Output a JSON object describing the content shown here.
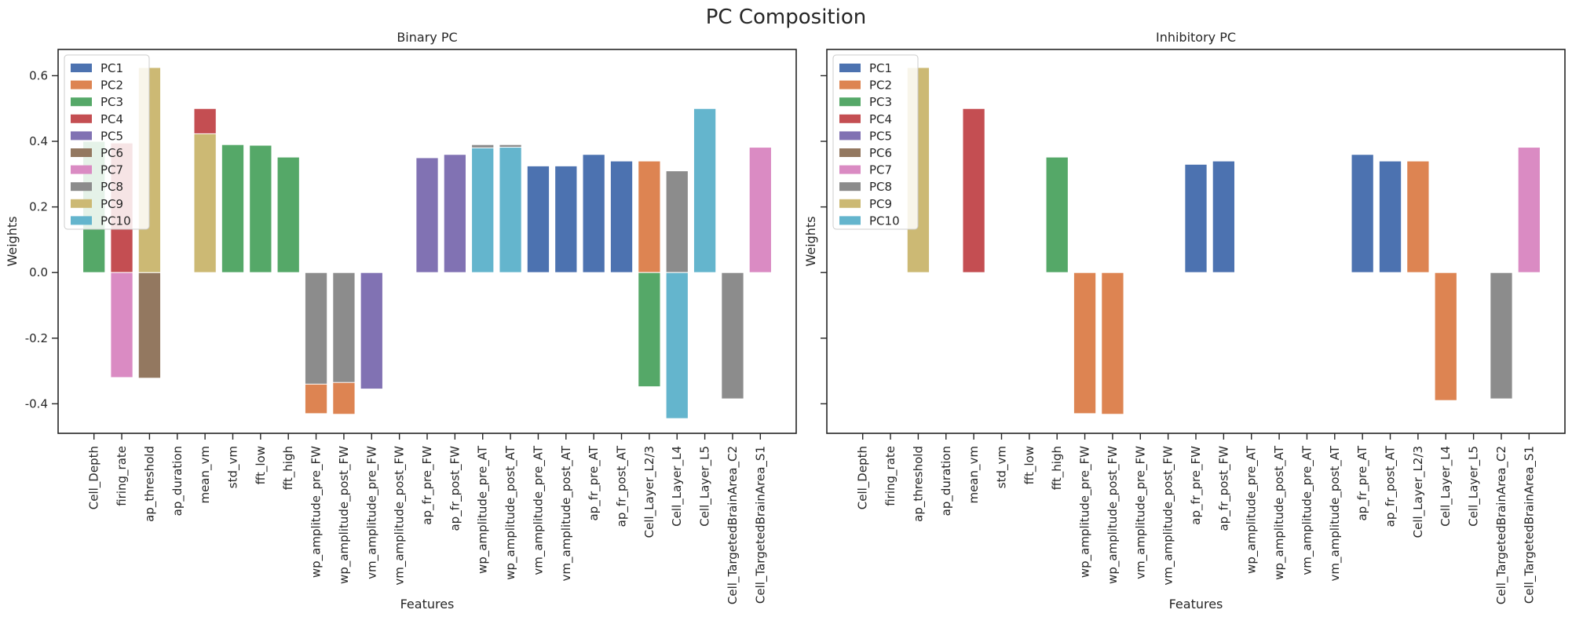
{
  "figure": {
    "suptitle": "PC Composition"
  },
  "colors": {
    "PC1": "#4c72b0",
    "PC2": "#dd8452",
    "PC3": "#55a868",
    "PC4": "#c44e52",
    "PC5": "#8172b3",
    "PC6": "#937860",
    "PC7": "#da8bc3",
    "PC8": "#8c8c8c",
    "PC9": "#ccb974",
    "PC10": "#64b5cd"
  },
  "chart_data": [
    {
      "type": "bar",
      "title": "Binary PC",
      "xlabel": "Features",
      "ylabel": "Weights",
      "ylim": [
        -0.49,
        0.68
      ],
      "yticks": [
        -0.4,
        -0.2,
        0.0,
        0.2,
        0.4,
        0.6
      ],
      "legend": "top-left",
      "categories": [
        "Cell_Depth",
        "firing_rate",
        "ap_threshold",
        "ap_duration",
        "mean_vm",
        "std_vm",
        "fft_low",
        "fft_high",
        "wp_amplitude_pre_FW",
        "wp_amplitude_post_FW",
        "vm_amplitude_pre_FW",
        "vm_amplitude_post_FW",
        "ap_fr_pre_FW",
        "ap_fr_post_FW",
        "wp_amplitude_pre_AT",
        "wp_amplitude_post_AT",
        "vm_amplitude_pre_AT",
        "vm_amplitude_post_AT",
        "ap_fr_pre_AT",
        "ap_fr_post_AT",
        "Cell_Layer_L2/3",
        "Cell_Layer_L4",
        "Cell_Layer_L5",
        "Cell_TargetedBrainArea_C2",
        "Cell_TargetedBrainArea_S1"
      ],
      "series": [
        {
          "name": "PC1",
          "values": [
            0,
            0,
            0,
            0,
            0,
            0,
            0,
            0,
            0,
            0,
            0,
            0,
            0,
            0,
            0,
            0,
            0.325,
            0.325,
            0.36,
            0.34,
            0,
            0,
            0,
            0,
            0
          ]
        },
        {
          "name": "PC2",
          "values": [
            0,
            0,
            0,
            0,
            0,
            0,
            0,
            0,
            -0.43,
            -0.432,
            0,
            0,
            0,
            0,
            0,
            0,
            0,
            0,
            0,
            0,
            0.34,
            0,
            0,
            0,
            0
          ]
        },
        {
          "name": "PC3",
          "values": [
            0.4,
            0,
            0,
            0,
            0,
            0.39,
            0.388,
            0.352,
            0,
            0,
            0,
            0,
            0,
            0,
            0,
            0,
            0,
            0,
            0,
            0,
            -0.348,
            0,
            0,
            0,
            0
          ]
        },
        {
          "name": "PC4",
          "values": [
            0,
            0.395,
            0,
            0,
            0.5,
            0,
            0,
            0,
            0,
            0,
            0,
            0,
            0,
            0,
            0,
            0,
            0,
            0,
            0,
            0,
            0,
            0,
            0,
            0,
            0
          ]
        },
        {
          "name": "PC5",
          "values": [
            0,
            0,
            0,
            0,
            0,
            0,
            0,
            0,
            0,
            0,
            -0.355,
            0,
            0.35,
            0.36,
            0,
            0,
            0,
            0,
            0,
            0,
            0,
            0,
            0,
            0,
            0
          ]
        },
        {
          "name": "PC6",
          "values": [
            0,
            0,
            -0.322,
            0,
            0,
            0,
            0,
            0,
            0,
            0,
            0,
            0,
            0,
            0,
            0,
            0,
            0,
            0,
            0,
            0,
            0,
            0,
            0,
            0,
            0
          ]
        },
        {
          "name": "PC7",
          "values": [
            0,
            -0.32,
            0,
            0,
            0,
            0,
            0,
            0,
            0,
            0,
            0,
            0,
            0,
            0,
            0,
            0,
            0,
            0,
            0,
            0,
            0,
            0,
            0,
            -0.38,
            0.382
          ]
        },
        {
          "name": "PC8",
          "values": [
            0,
            0,
            0,
            0,
            0,
            0,
            0,
            0,
            -0.34,
            -0.335,
            0,
            0,
            0,
            0,
            0.39,
            0.39,
            0,
            0,
            0,
            0,
            0,
            0.31,
            0,
            -0.385,
            0
          ]
        },
        {
          "name": "PC9",
          "values": [
            0,
            0,
            0.625,
            0,
            0.423,
            0,
            0,
            0,
            0,
            0,
            0,
            0,
            0,
            0,
            0,
            0,
            0,
            0,
            0,
            0,
            0,
            0,
            0,
            0,
            0
          ]
        },
        {
          "name": "PC10",
          "values": [
            0,
            0,
            0,
            0,
            0,
            0,
            0,
            0,
            0,
            0,
            0,
            0,
            0,
            0,
            0.38,
            0.382,
            0,
            0,
            0,
            0,
            0,
            -0.445,
            0.5,
            0,
            0
          ]
        }
      ]
    },
    {
      "type": "bar",
      "title": "Inhibitory PC",
      "xlabel": "Features",
      "ylabel": "Weights",
      "ylim": [
        -0.49,
        0.68
      ],
      "yticks": [
        -0.4,
        -0.2,
        0.0,
        0.2,
        0.4,
        0.6
      ],
      "legend": "top-left",
      "categories": [
        "Cell_Depth",
        "firing_rate",
        "ap_threshold",
        "ap_duration",
        "mean_vm",
        "std_vm",
        "fft_low",
        "fft_high",
        "wp_amplitude_pre_FW",
        "wp_amplitude_post_FW",
        "vm_amplitude_pre_FW",
        "vm_amplitude_post_FW",
        "ap_fr_pre_FW",
        "ap_fr_post_FW",
        "wp_amplitude_pre_AT",
        "wp_amplitude_post_AT",
        "vm_amplitude_pre_AT",
        "vm_amplitude_post_AT",
        "ap_fr_pre_AT",
        "ap_fr_post_AT",
        "Cell_Layer_L2/3",
        "Cell_Layer_L4",
        "Cell_Layer_L5",
        "Cell_TargetedBrainArea_C2",
        "Cell_TargetedBrainArea_S1"
      ],
      "series": [
        {
          "name": "PC1",
          "values": [
            0,
            0,
            0,
            0,
            0,
            0,
            0,
            0,
            0,
            0,
            0,
            0,
            0.33,
            0.34,
            0,
            0,
            0,
            0,
            0.36,
            0.34,
            0,
            0,
            0,
            0,
            0
          ]
        },
        {
          "name": "PC2",
          "values": [
            0,
            0,
            0,
            0,
            0,
            0,
            0,
            0,
            -0.43,
            -0.432,
            0,
            0,
            0,
            0,
            0,
            0,
            0,
            0,
            0,
            0,
            0.34,
            -0.39,
            0,
            0,
            0
          ]
        },
        {
          "name": "PC3",
          "values": [
            0,
            0,
            0,
            0,
            0,
            0,
            0,
            0.352,
            0,
            0,
            0,
            0,
            0,
            0,
            0,
            0,
            0,
            0,
            0,
            0,
            0,
            0,
            0,
            0,
            0
          ]
        },
        {
          "name": "PC4",
          "values": [
            0,
            0,
            0,
            0,
            0.5,
            0,
            0,
            0,
            0,
            0,
            0,
            0,
            0,
            0,
            0,
            0,
            0,
            0,
            0,
            0,
            0,
            0,
            0,
            0,
            0
          ]
        },
        {
          "name": "PC5",
          "values": [
            0,
            0,
            0,
            0,
            0,
            0,
            0,
            0,
            0,
            0,
            0,
            0,
            0,
            0,
            0,
            0,
            0,
            0,
            0,
            0,
            0,
            0,
            0,
            0,
            0
          ]
        },
        {
          "name": "PC6",
          "values": [
            0,
            0,
            0,
            0,
            0,
            0,
            0,
            0,
            0,
            0,
            0,
            0,
            0,
            0,
            0,
            0,
            0,
            0,
            0,
            0,
            0,
            0,
            0,
            0,
            0
          ]
        },
        {
          "name": "PC7",
          "values": [
            0,
            0,
            0,
            0,
            0,
            0,
            0,
            0,
            0,
            0,
            0,
            0,
            0,
            0,
            0,
            0,
            0,
            0,
            0,
            0,
            0,
            0,
            0,
            -0.38,
            0.382
          ]
        },
        {
          "name": "PC8",
          "values": [
            0,
            0,
            0,
            0,
            0,
            0,
            0,
            0,
            0,
            0,
            0,
            0,
            0,
            0,
            0,
            0,
            0,
            0,
            0,
            0,
            0,
            0,
            0,
            -0.385,
            0
          ]
        },
        {
          "name": "PC9",
          "values": [
            0,
            0,
            0.625,
            0,
            0,
            0,
            0,
            0,
            0,
            0,
            0,
            0,
            0,
            0,
            0,
            0,
            0,
            0,
            0,
            0,
            0,
            0,
            0,
            0,
            0
          ]
        },
        {
          "name": "PC10",
          "values": [
            0,
            0,
            0,
            0,
            0,
            0,
            0,
            0,
            0,
            0,
            0,
            0,
            0,
            0,
            0,
            0,
            0,
            0,
            0,
            0,
            0,
            0,
            0,
            0,
            0
          ]
        }
      ]
    }
  ]
}
